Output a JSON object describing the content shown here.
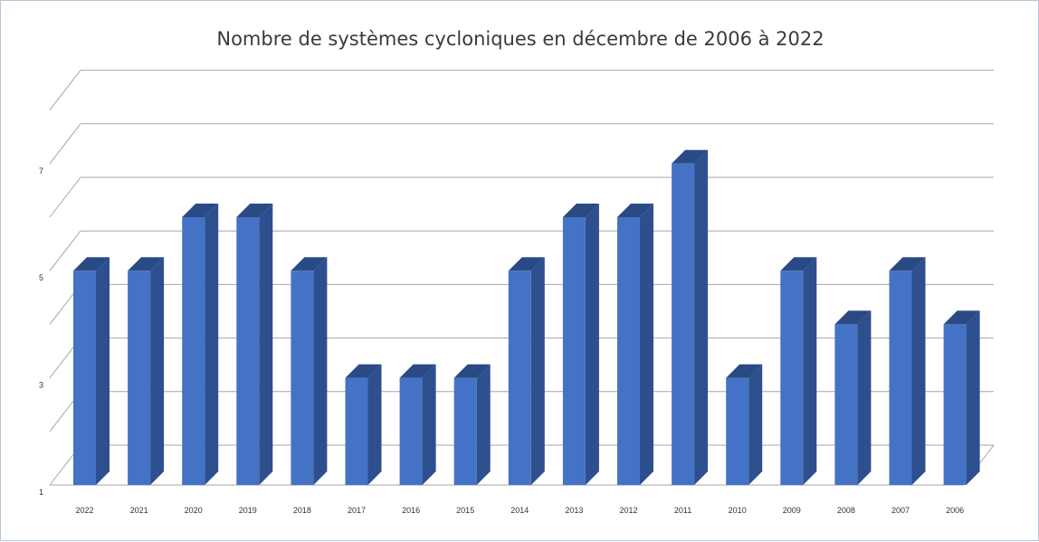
{
  "chart_data": {
    "type": "bar",
    "title": "Nombre de systèmes cycloniques en décembre de 2006 à 2022",
    "xlabel": "",
    "ylabel": "",
    "categories": [
      "2022",
      "2021",
      "2020",
      "2019",
      "2018",
      "2017",
      "2016",
      "2015",
      "2014",
      "2013",
      "2012",
      "2011",
      "2010",
      "2009",
      "2008",
      "2007",
      "2006"
    ],
    "series": [
      {
        "values": [
          5,
          5,
          6,
          6,
          5,
          3,
          3,
          3,
          5,
          6,
          6,
          7,
          3,
          5,
          4,
          5,
          4
        ]
      }
    ],
    "ylim": [
      1,
      8
    ],
    "y_tick_labels": [
      "1",
      "3",
      "5",
      "7"
    ],
    "y_tick_values": [
      1,
      3,
      5,
      7
    ],
    "grid": true,
    "legend": "none",
    "colors": {
      "bar_front": "#4472c4",
      "bar_side": "#2d4f8e",
      "bar_top": "#2a4a86",
      "grid": "#a6a6a6"
    }
  }
}
